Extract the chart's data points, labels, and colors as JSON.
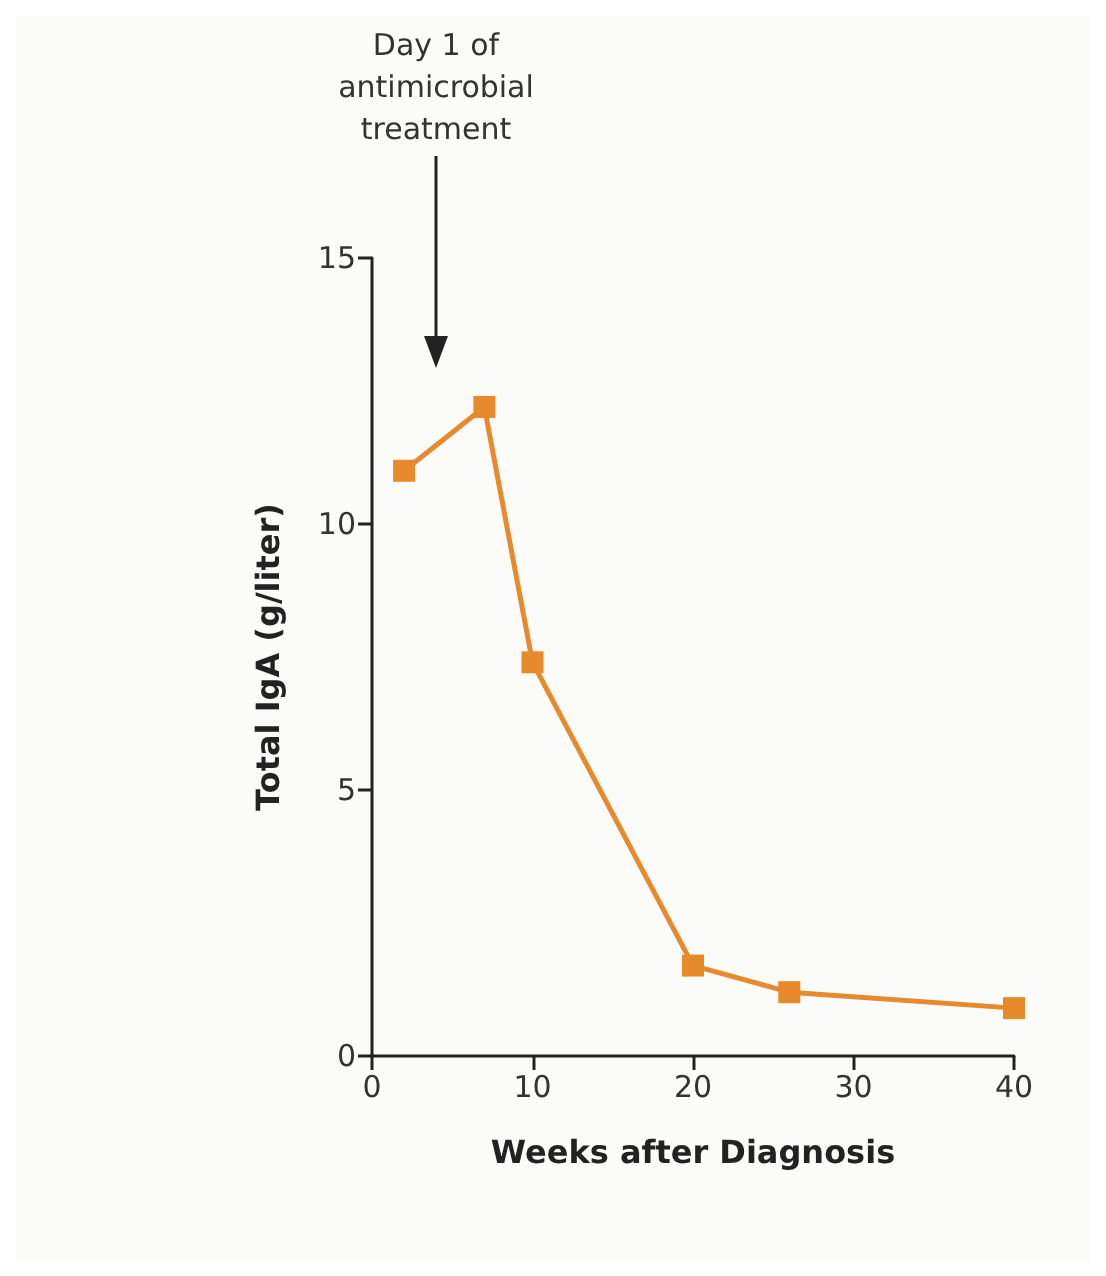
{
  "chart_data": {
    "type": "line",
    "xlabel": "Weeks after Diagnosis",
    "ylabel": "Total IgA (g/liter)",
    "x": [
      2,
      7,
      10,
      20,
      26,
      40
    ],
    "series": [
      {
        "color": "#e8892c",
        "values": [
          11.0,
          12.2,
          7.4,
          1.7,
          1.2,
          0.9
        ]
      }
    ],
    "xlim": [
      0,
      40
    ],
    "xticks": [
      0,
      10,
      20,
      30,
      40
    ],
    "ylim": [
      0,
      15
    ],
    "yticks": [
      0,
      5,
      10,
      15
    ],
    "grid": false,
    "marker": "square",
    "line_style": "solid",
    "annotations": [
      "Day 1 of\nantimicrobial\ntreatment"
    ]
  }
}
